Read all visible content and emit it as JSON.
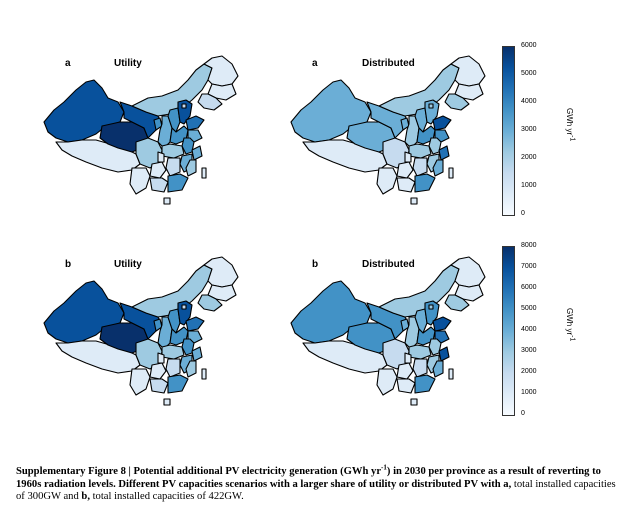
{
  "panels": [
    {
      "letter": "a",
      "title": "Utility",
      "scheme": "utility_300"
    },
    {
      "letter": "a",
      "title": "Distributed",
      "scheme": "distributed_300"
    },
    {
      "letter": "b",
      "title": "Utility",
      "scheme": "utility_422"
    },
    {
      "letter": "b",
      "title": "Distributed",
      "scheme": "distributed_422"
    }
  ],
  "legends": [
    {
      "ticks": [
        "6000",
        "5000",
        "4000",
        "3000",
        "2000",
        "1000",
        "0"
      ],
      "max": 6000,
      "unit": "GWh yr"
    },
    {
      "ticks": [
        "8000",
        "7000",
        "6000",
        "5000",
        "4000",
        "3000",
        "2000",
        "1000",
        "0"
      ],
      "max": 8000,
      "unit": "GWh yr"
    }
  ],
  "unit_exponent": "-1",
  "colors": {
    "ramp": [
      "#f7fbff",
      "#deebf7",
      "#c6dbef",
      "#9ecae1",
      "#6baed6",
      "#4292c6",
      "#2171b5",
      "#08519c",
      "#08306b"
    ]
  },
  "caption": {
    "line1_bold_a": "Supplementary Figure 8 | Potential additional PV electricity generation (GWh yr",
    "line1_sup": "-1",
    "line1_bold_b": ") in 2030 per province as a result of reverting to 1960s radiation levels. Different PV capacities scenarios with a larger share of utility or distributed PV with ",
    "a_label": "a,",
    "a_text": " total installed capacities of 300GW and ",
    "b_label": "b,",
    "b_text": " total installed capacities of 422GW."
  }
}
